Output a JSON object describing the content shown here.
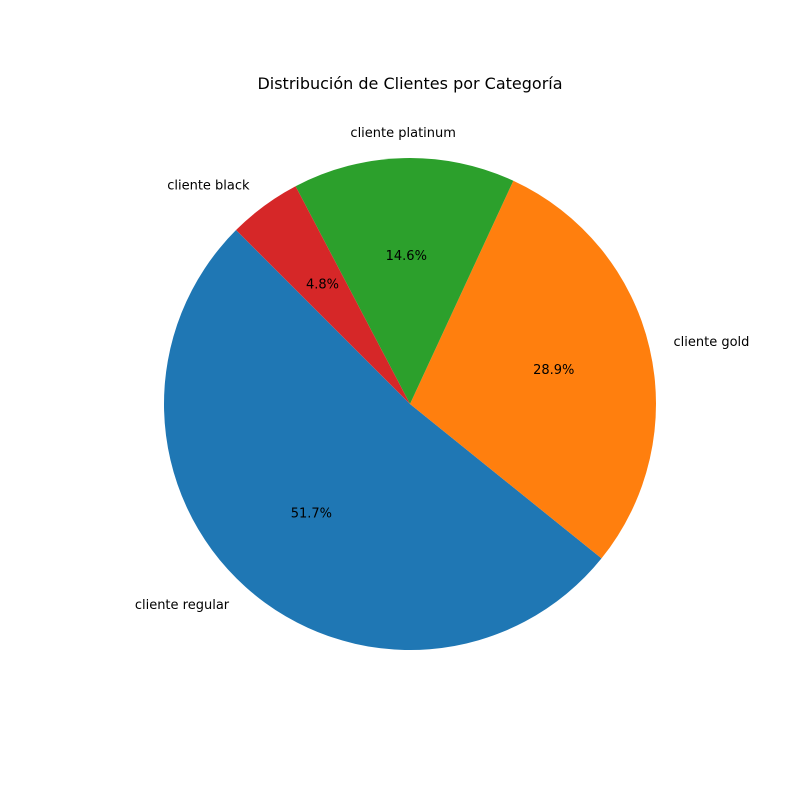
{
  "chart_data": {
    "type": "pie",
    "title": "Distribución de Clientes por Categoría",
    "slices": [
      {
        "label": "cliente regular",
        "value": 51.7,
        "pct_label": "51.7%",
        "color": "#1f77b4"
      },
      {
        "label": "cliente gold",
        "value": 28.9,
        "pct_label": "28.9%",
        "color": "#ff7f0e"
      },
      {
        "label": "cliente platinum",
        "value": 14.6,
        "pct_label": "14.6%",
        "color": "#2ca02c"
      },
      {
        "label": "cliente black",
        "value": 4.8,
        "pct_label": "4.8%",
        "color": "#d62728"
      }
    ],
    "start_angle_deg": 135,
    "direction": "counterclockwise",
    "legend": "none",
    "grid": false
  }
}
